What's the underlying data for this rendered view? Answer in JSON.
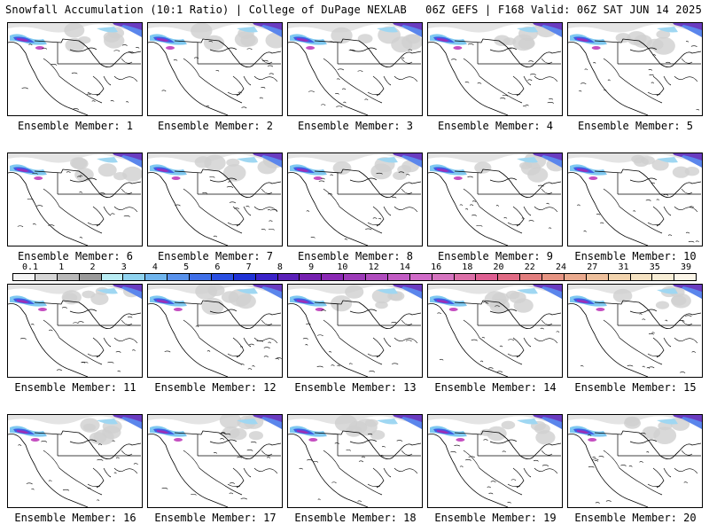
{
  "header": {
    "left": "Snowfall Accumulation (10:1 Ratio) | College of DuPage NEXLAB",
    "right": "06Z GEFS | F168 Valid: 06Z SAT JUN 14 2025"
  },
  "members": [
    "Ensemble Member: 1",
    "Ensemble Member: 2",
    "Ensemble Member: 3",
    "Ensemble Member: 4",
    "Ensemble Member: 5",
    "Ensemble Member: 6",
    "Ensemble Member: 7",
    "Ensemble Member: 8",
    "Ensemble Member: 9",
    "Ensemble Member: 10",
    "Ensemble Member: 11",
    "Ensemble Member: 12",
    "Ensemble Member: 13",
    "Ensemble Member: 14",
    "Ensemble Member: 15",
    "Ensemble Member: 16",
    "Ensemble Member: 17",
    "Ensemble Member: 18",
    "Ensemble Member: 19",
    "Ensemble Member: 20"
  ],
  "colorbar": {
    "labels": [
      "0.1",
      "1",
      "2",
      "3",
      "4",
      "5",
      "6",
      "7",
      "8",
      "9",
      "10",
      "12",
      "14",
      "16",
      "18",
      "20",
      "22",
      "24",
      "27",
      "31",
      "35",
      "39"
    ],
    "colors": [
      "#f4f4f4",
      "#d6d6d6",
      "#b8b8b8",
      "#9a9a9a",
      "#b9ecf3",
      "#8fd3ef",
      "#6fb5ee",
      "#5892ec",
      "#3f6fe8",
      "#2a4fe2",
      "#1f32d6",
      "#3a22c8",
      "#5a20b8",
      "#7520b0",
      "#8a28b4",
      "#9c3ab8",
      "#b04cbe",
      "#c25bc4",
      "#d06ac8",
      "#d674c0",
      "#dc6fa8",
      "#de5f92",
      "#e06a84",
      "#e27e7e",
      "#e69482",
      "#eaaa8e",
      "#eec09c",
      "#f2d4ae",
      "#f5e2c2",
      "#f8eed6",
      "#fbf5e8"
    ]
  }
}
